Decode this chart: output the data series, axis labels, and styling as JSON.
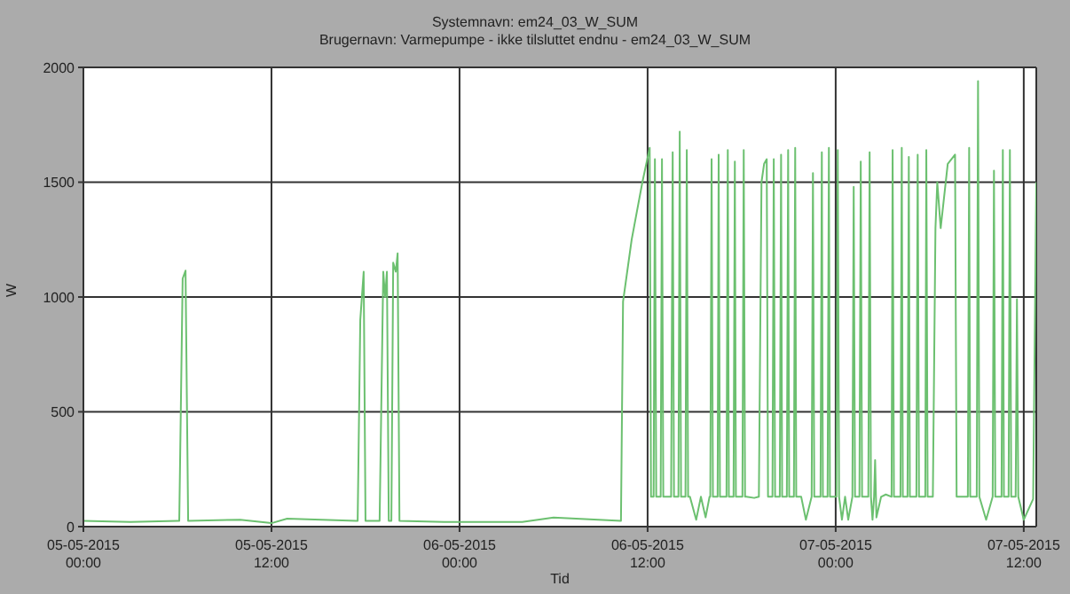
{
  "chart_data": {
    "type": "line",
    "title": "Systemnavn: em24_03_W_SUM",
    "subtitle": "Brugernavn: Varmepumpe - ikke tilsluttet endnu - em24_03_W_SUM",
    "xlabel": "Tid",
    "ylabel": "W",
    "xlim": [
      "2015-05-05T00:00",
      "2015-05-07T12:48"
    ],
    "xticks": [
      {
        "value": "2015-05-05T00:00",
        "label": "05-05-2015\n00:00"
      },
      {
        "value": "2015-05-05T12:00",
        "label": "05-05-2015\n12:00"
      },
      {
        "value": "2015-05-06T00:00",
        "label": "06-05-2015\n00:00"
      },
      {
        "value": "2015-05-06T12:00",
        "label": "06-05-2015\n12:00"
      },
      {
        "value": "2015-05-07T00:00",
        "label": "07-05-2015\n00:00"
      },
      {
        "value": "2015-05-07T12:00",
        "label": "07-05-2015\n12:00"
      }
    ],
    "ylim": [
      0,
      2000
    ],
    "yticks": [
      0,
      500,
      1000,
      1500,
      2000
    ],
    "grid": true,
    "legend": false,
    "marker": "none",
    "line_style": "solid",
    "series": [
      {
        "color": "#6cc070",
        "x": [
          "2015-05-05T00:00",
          "2015-05-05T03:00",
          "2015-05-05T06:00",
          "2015-05-05T06:07",
          "2015-05-05T06:20",
          "2015-05-05T06:31",
          "2015-05-05T06:41",
          "2015-05-05T10:00",
          "2015-05-05T12:00",
          "2015-05-05T13:00",
          "2015-05-05T17:24",
          "2015-05-05T17:30",
          "2015-05-05T17:40",
          "2015-05-05T17:53",
          "2015-05-05T18:00",
          "2015-05-05T18:54",
          "2015-05-05T19:08",
          "2015-05-05T19:15",
          "2015-05-05T19:22",
          "2015-05-05T19:29",
          "2015-05-05T19:39",
          "2015-05-05T19:46",
          "2015-05-05T19:56",
          "2015-05-05T20:03",
          "2015-05-05T20:10",
          "2015-05-05T23:00",
          "2015-05-06T04:00",
          "2015-05-06T06:00",
          "2015-05-06T10:18",
          "2015-05-06T10:26",
          "2015-05-06T10:59",
          "2015-05-06T11:40",
          "2015-05-06T12:08",
          "2015-05-06T12:13",
          "2015-05-06T12:23",
          "2015-05-06T12:28",
          "2015-05-06T12:33",
          "2015-05-06T12:50",
          "2015-05-06T12:55",
          "2015-05-06T13:00",
          "2015-05-06T13:30",
          "2015-05-06T13:36",
          "2015-05-06T13:41",
          "2015-05-06T13:58",
          "2015-05-06T14:03",
          "2015-05-06T14:08",
          "2015-05-06T14:25",
          "2015-05-06T14:30",
          "2015-05-06T14:35",
          "2015-05-06T14:42",
          "2015-05-06T15:06",
          "2015-05-06T15:24",
          "2015-05-06T15:42",
          "2015-05-06T15:57",
          "2015-05-06T16:00",
          "2015-05-06T16:05",
          "2015-05-06T16:10",
          "2015-05-06T16:28",
          "2015-05-06T16:32",
          "2015-05-06T16:37",
          "2015-05-06T17:02",
          "2015-05-06T17:07",
          "2015-05-06T17:11",
          "2015-05-06T17:29",
          "2015-05-06T17:34",
          "2015-05-06T17:38",
          "2015-05-06T18:03",
          "2015-05-06T18:08",
          "2015-05-06T18:13",
          "2015-05-06T18:18",
          "2015-05-06T18:48",
          "2015-05-06T19:06",
          "2015-05-06T19:16",
          "2015-05-06T19:26",
          "2015-05-06T19:36",
          "2015-05-06T19:41",
          "2015-05-06T19:58",
          "2015-05-06T20:03",
          "2015-05-06T20:08",
          "2015-05-06T20:26",
          "2015-05-06T20:31",
          "2015-05-06T20:35",
          "2015-05-06T20:53",
          "2015-05-06T20:58",
          "2015-05-06T21:02",
          "2015-05-06T21:20",
          "2015-05-06T21:25",
          "2015-05-06T21:29",
          "2015-05-06T21:48",
          "2015-05-06T22:06",
          "2015-05-06T22:28",
          "2015-05-06T22:33",
          "2015-05-06T22:38",
          "2015-05-06T23:02",
          "2015-05-06T23:07",
          "2015-05-06T23:11",
          "2015-05-06T23:29",
          "2015-05-06T23:34",
          "2015-05-06T23:38",
          "2015-05-07T00:03",
          "2015-05-07T00:08",
          "2015-05-07T00:13",
          "2015-05-07T00:24",
          "2015-05-07T00:36",
          "2015-05-07T00:48",
          "2015-05-07T01:04",
          "2015-05-07T01:09",
          "2015-05-07T01:14",
          "2015-05-07T01:31",
          "2015-05-07T01:36",
          "2015-05-07T01:41",
          "2015-05-07T02:05",
          "2015-05-07T02:10",
          "2015-05-07T02:15",
          "2015-05-07T02:21",
          "2015-05-07T02:27",
          "2015-05-07T02:31",
          "2015-05-07T02:36",
          "2015-05-07T02:54",
          "2015-05-07T03:12",
          "2015-05-07T03:34",
          "2015-05-07T03:38",
          "2015-05-07T03:43",
          "2015-05-07T04:08",
          "2015-05-07T04:13",
          "2015-05-07T04:17",
          "2015-05-07T04:35",
          "2015-05-07T04:40",
          "2015-05-07T04:44",
          "2015-05-07T05:09",
          "2015-05-07T05:14",
          "2015-05-07T05:19",
          "2015-05-07T05:43",
          "2015-05-07T05:47",
          "2015-05-07T05:52",
          "2015-05-07T06:12",
          "2015-05-07T06:22",
          "2015-05-07T06:29",
          "2015-05-07T06:42",
          "2015-05-07T07:09",
          "2015-05-07T07:37",
          "2015-05-07T07:43",
          "2015-05-07T08:00",
          "2015-05-07T08:26",
          "2015-05-07T08:31",
          "2015-05-07T08:35",
          "2015-05-07T09:00",
          "2015-05-07T09:05",
          "2015-05-07T09:10",
          "2015-05-07T09:36",
          "2015-05-07T10:01",
          "2015-05-07T10:06",
          "2015-05-07T10:11",
          "2015-05-07T10:35",
          "2015-05-07T10:40",
          "2015-05-07T10:44",
          "2015-05-07T11:02",
          "2015-05-07T11:07",
          "2015-05-07T11:12",
          "2015-05-07T11:29",
          "2015-05-07T11:34",
          "2015-05-07T11:39",
          "2015-05-07T12:00",
          "2015-05-07T12:36",
          "2015-05-07T12:48"
        ],
        "values": [
          25,
          20,
          25,
          25,
          1080,
          1115,
          25,
          30,
          15,
          35,
          25,
          25,
          900,
          1110,
          25,
          25,
          1110,
          1000,
          1110,
          25,
          25,
          1150,
          1110,
          1190,
          25,
          20,
          20,
          40,
          25,
          980,
          1250,
          1500,
          1650,
          130,
          130,
          1600,
          130,
          130,
          1600,
          130,
          130,
          1630,
          130,
          130,
          1720,
          130,
          130,
          1640,
          130,
          130,
          30,
          130,
          40,
          130,
          130,
          1600,
          130,
          130,
          1620,
          130,
          130,
          1640,
          130,
          130,
          1590,
          130,
          130,
          1640,
          130,
          130,
          125,
          130,
          1500,
          1580,
          1600,
          130,
          130,
          1600,
          130,
          130,
          1620,
          130,
          130,
          1640,
          130,
          130,
          1650,
          130,
          130,
          30,
          130,
          1540,
          130,
          130,
          1630,
          130,
          130,
          1650,
          130,
          130,
          1640,
          130,
          30,
          130,
          30,
          130,
          1480,
          130,
          130,
          1590,
          130,
          130,
          1630,
          130,
          30,
          130,
          290,
          40,
          130,
          140,
          130,
          1640,
          130,
          130,
          1650,
          130,
          130,
          1610,
          130,
          130,
          1620,
          130,
          130,
          1640,
          130,
          130,
          1300,
          1500,
          1300,
          1580,
          1620,
          130,
          130,
          130,
          1650,
          130,
          130,
          1940,
          130,
          30,
          130,
          1550,
          130,
          130,
          1640,
          130,
          130,
          1640,
          130,
          130,
          990,
          130,
          30,
          120,
          1500
        ]
      }
    ]
  }
}
